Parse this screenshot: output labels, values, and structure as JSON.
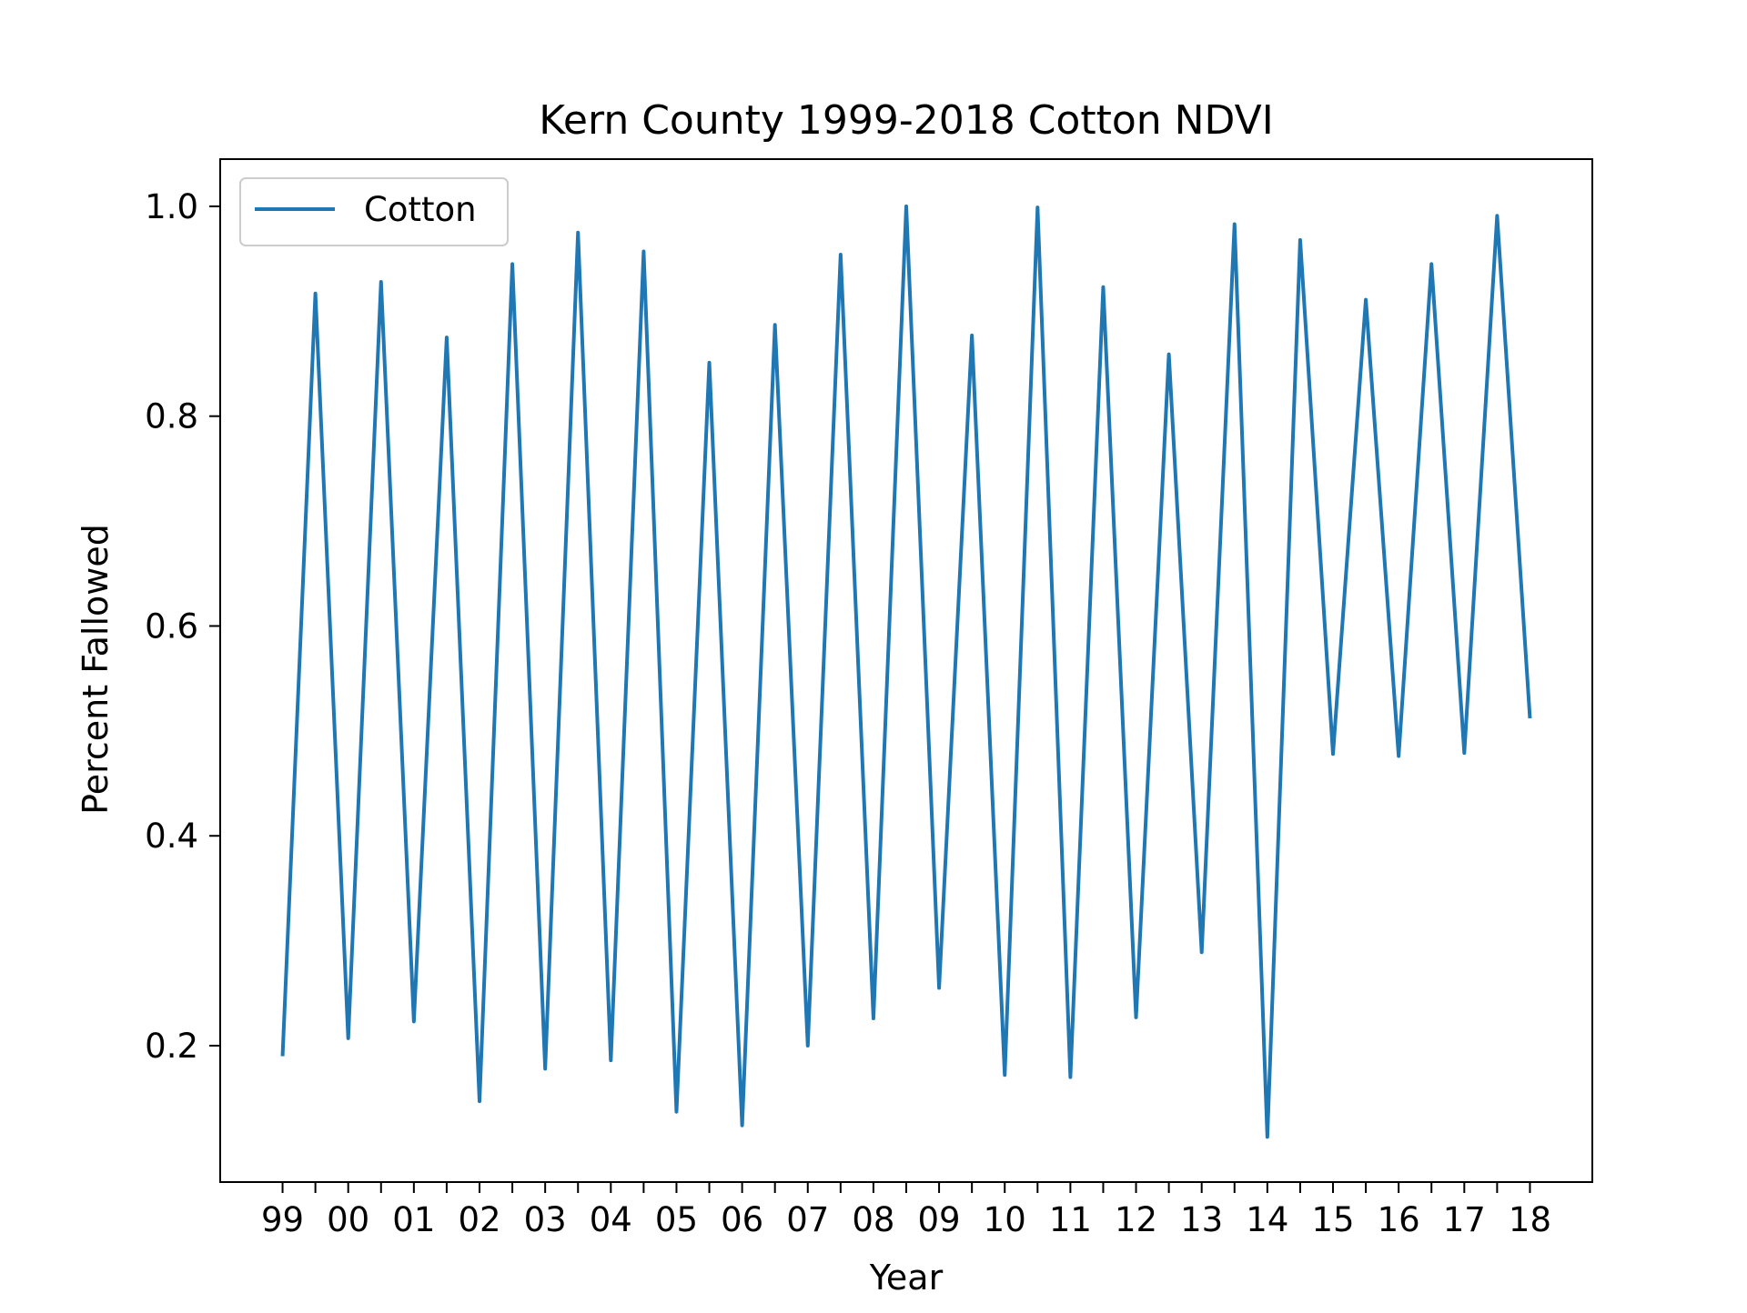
{
  "chart_data": {
    "type": "line",
    "title": "Kern County 1999-2018 Cotton NDVI",
    "xlabel": "Year",
    "ylabel": "Percent Fallowed",
    "x_tick_labels": [
      "99",
      "00",
      "01",
      "02",
      "03",
      "04",
      "05",
      "06",
      "07",
      "08",
      "09",
      "10",
      "11",
      "12",
      "13",
      "14",
      "15",
      "16",
      "17",
      "18"
    ],
    "y_ticks": [
      0.2,
      0.4,
      0.6,
      0.8,
      1.0
    ],
    "y_tick_labels": [
      "0.2",
      "0.4",
      "0.6",
      "0.8",
      "1.0"
    ],
    "ylim": [
      0.07,
      1.045
    ],
    "xlim": [
      -0.95,
      19.95
    ],
    "grid": false,
    "legend_position": "top-left",
    "series": [
      {
        "name": "Cotton",
        "color": "#1f77b4",
        "x": [
          0,
          0.5,
          1,
          1.5,
          2,
          2.5,
          3,
          3.5,
          4,
          4.5,
          5,
          5.5,
          6,
          6.5,
          7,
          7.5,
          8,
          8.5,
          9,
          9.5,
          10,
          10.5,
          11,
          11.5,
          12,
          12.5,
          13,
          13.5,
          14,
          14.5,
          15,
          15.5,
          16,
          16.5,
          17,
          17.5,
          18,
          18.5,
          19
        ],
        "values": [
          0.19,
          0.917,
          0.207,
          0.928,
          0.223,
          0.875,
          0.147,
          0.945,
          0.178,
          0.975,
          0.186,
          0.957,
          0.137,
          0.851,
          0.124,
          0.887,
          0.2,
          0.954,
          0.226,
          1.0,
          0.255,
          0.877,
          0.172,
          0.999,
          0.17,
          0.923,
          0.227,
          0.859,
          0.289,
          0.983,
          0.113,
          0.968,
          0.478,
          0.911,
          0.476,
          0.945,
          0.479,
          0.991,
          0.512
        ]
      }
    ]
  }
}
